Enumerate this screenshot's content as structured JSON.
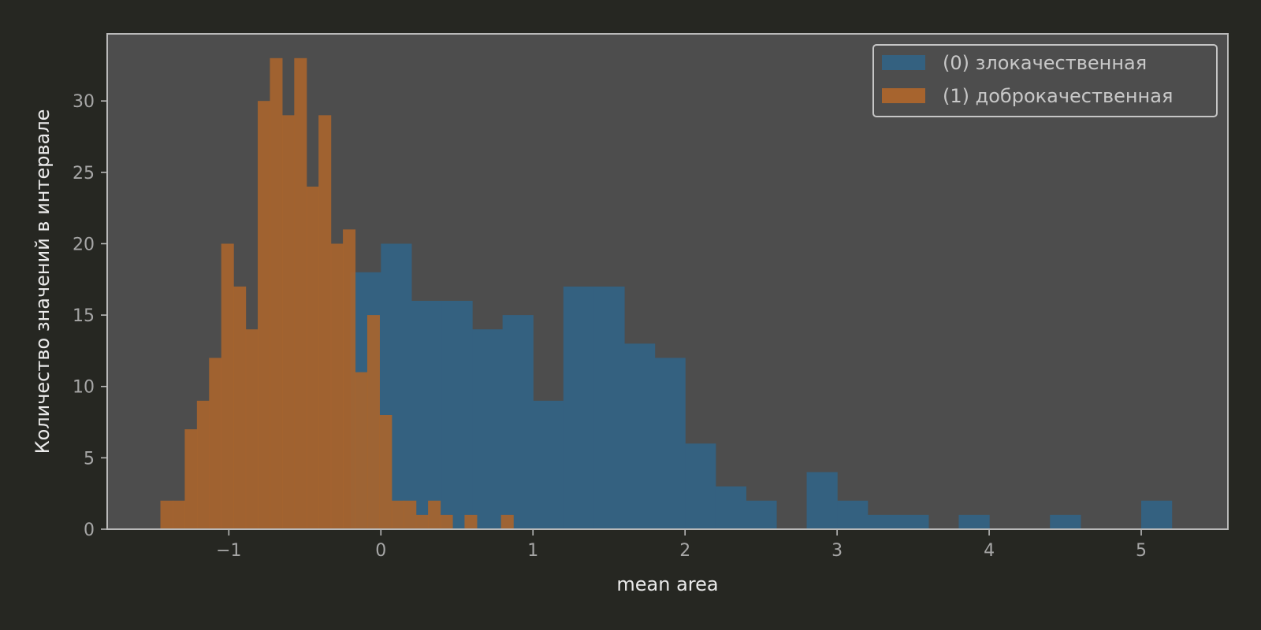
{
  "chart_data": {
    "type": "histogram",
    "xlabel": "mean area",
    "ylabel": "Количество значений в интервале",
    "xlim": [
      -1.8,
      5.57
    ],
    "ylim": [
      0,
      34.7
    ],
    "xticks": [
      -1,
      0,
      1,
      2,
      3,
      4,
      5
    ],
    "yticks": [
      0,
      5,
      10,
      15,
      20,
      25,
      30
    ],
    "grid": false,
    "legend_position": "top-right",
    "colors": {
      "background": "#262722",
      "plot_area": "#4d4d4d",
      "axis_line": "#b9b9b9",
      "malignant": "#346180",
      "benign": "#a7642e",
      "overlap": "#9b7348"
    },
    "series": [
      {
        "name": "(0) злокачественная",
        "color": "#346180",
        "bin_start": -0.2,
        "bin_width": 0.2,
        "counts": [
          18,
          20,
          16,
          16,
          14,
          15,
          9,
          17,
          17,
          13,
          12,
          6,
          3,
          2,
          0,
          4,
          2,
          1,
          1,
          0,
          1,
          0,
          0,
          1,
          0,
          0,
          2
        ]
      },
      {
        "name": "(1) доброкачественная",
        "color": "#a7642e",
        "bin_start": -1.45,
        "bin_width": 0.08,
        "counts": [
          2,
          2,
          7,
          9,
          12,
          20,
          17,
          14,
          30,
          33,
          29,
          33,
          24,
          29,
          20,
          21,
          11,
          15,
          8,
          2,
          2,
          1,
          2,
          1,
          0,
          1,
          0,
          0,
          1
        ]
      }
    ]
  },
  "legend": [
    {
      "label": "(0) злокачественная",
      "color": "#346180"
    },
    {
      "label": "(1) доброкачественная",
      "color": "#a7642e"
    }
  ]
}
